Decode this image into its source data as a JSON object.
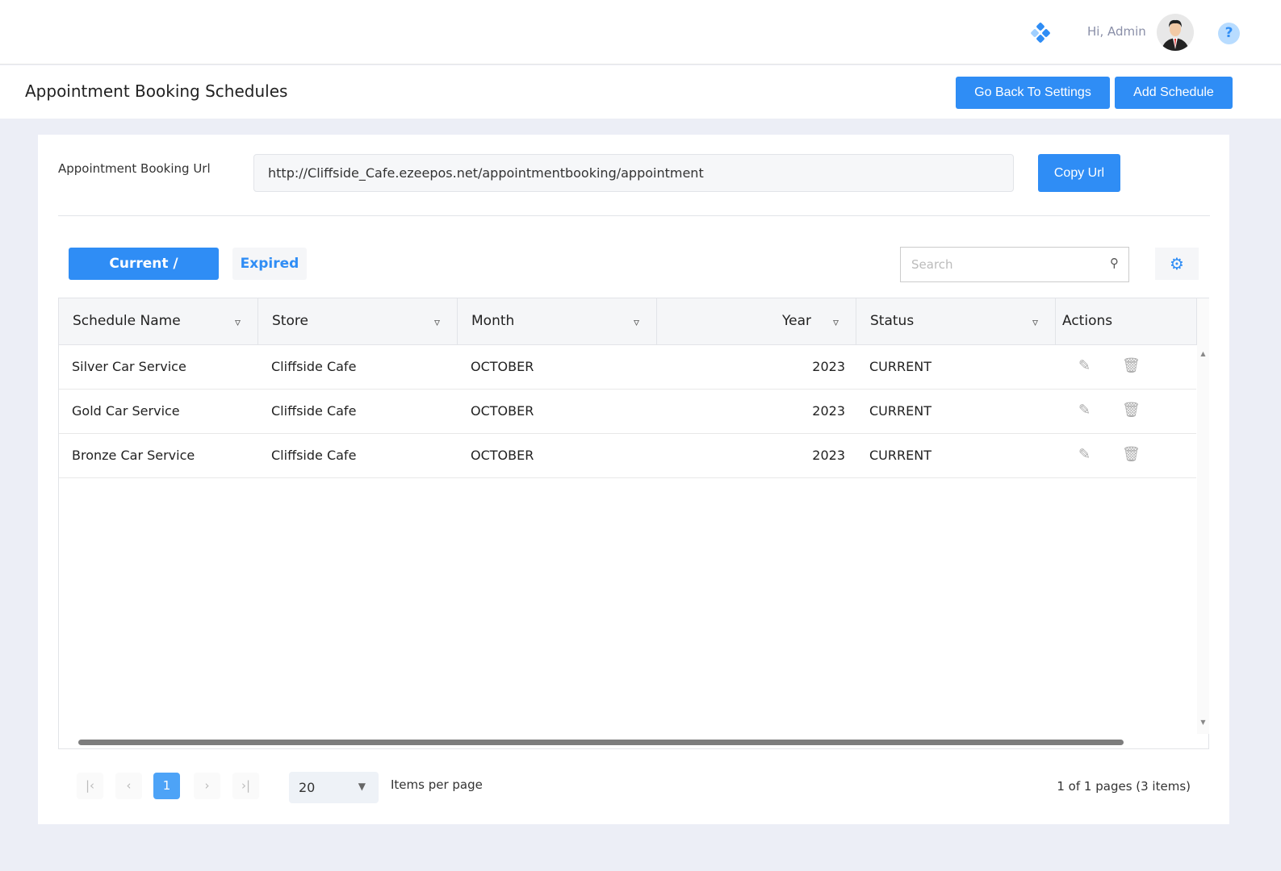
{
  "topbar": {
    "greeting": "Hi, Admin",
    "help": "?"
  },
  "header": {
    "title": "Appointment Booking Schedules",
    "back_label": "Go Back To Settings",
    "add_label": "Add Schedule"
  },
  "url_section": {
    "label": "Appointment Booking Url",
    "value": "http://Cliffside_Cafe.ezeepos.net/appointmentbooking/appointment",
    "copy_label": "Copy Url"
  },
  "tabs": [
    {
      "label": "Current / Upcoming",
      "active": true
    },
    {
      "label": "Expired",
      "active": false
    }
  ],
  "search": {
    "placeholder": "Search"
  },
  "table": {
    "columns": [
      "Schedule Name",
      "Store",
      "Month",
      "Year",
      "Status",
      "Actions"
    ],
    "rows": [
      {
        "name": "Silver Car Service",
        "store": "Cliffside Cafe",
        "month": "OCTOBER",
        "year": "2023",
        "status": "CURRENT"
      },
      {
        "name": "Gold Car Service",
        "store": "Cliffside Cafe",
        "month": "OCTOBER",
        "year": "2023",
        "status": "CURRENT"
      },
      {
        "name": "Bronze Car Service",
        "store": "Cliffside Cafe",
        "month": "OCTOBER",
        "year": "2023",
        "status": "CURRENT"
      }
    ]
  },
  "pager": {
    "current_page": "1",
    "page_size": "20",
    "items_per_page_label": "Items per page",
    "info": "1 of 1 pages (3 items)"
  },
  "colors": {
    "accent": "#2f8df5"
  }
}
